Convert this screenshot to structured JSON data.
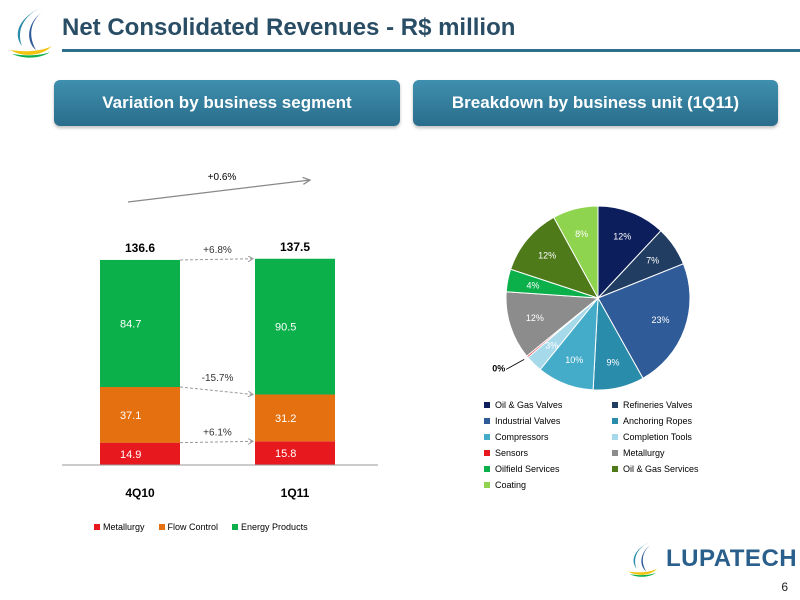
{
  "title": "Net Consolidated Revenues - R$ million",
  "headers": {
    "left": "Variation by business segment",
    "right": "Breakdown by business unit (1Q11)"
  },
  "brand": {
    "name": "LUPATECH"
  },
  "page_number": "6",
  "colors": {
    "title": "#2a4d66",
    "header_button": "#3a87a8",
    "metallurgy": "#e8191e",
    "flow_control": "#e4700f",
    "energy_products": "#0bb04b"
  },
  "chart_data": [
    {
      "type": "bar",
      "stacked": true,
      "categories": [
        "4Q10",
        "1Q11"
      ],
      "series": [
        {
          "name": "Metallurgy",
          "color": "#e8191e",
          "values": [
            14.9,
            15.8
          ],
          "labels": [
            "14.9",
            "15.8"
          ]
        },
        {
          "name": "Flow Control",
          "color": "#e4700f",
          "values": [
            37.1,
            31.2
          ],
          "labels": [
            "37.1",
            "31.2"
          ]
        },
        {
          "name": "Energy Products",
          "color": "#0bb04b",
          "values": [
            84.7,
            90.5
          ],
          "labels": [
            "84.7",
            "90.5"
          ]
        }
      ],
      "totals": [
        "136.6",
        "137.5"
      ],
      "annotations": {
        "total_change": "+0.6%",
        "energy_products_change": "+6.8%",
        "flow_control_change": "-15.7%",
        "metallurgy_change": "+6.1%"
      },
      "legend_position": "bottom",
      "grid": false
    },
    {
      "type": "pie",
      "slices": [
        {
          "name": "Oil & Gas Valves",
          "value": 12,
          "label": "12%",
          "color": "#0c1f5c"
        },
        {
          "name": "Refineries Valves",
          "value": 7,
          "label": "7%",
          "color": "#213d62"
        },
        {
          "name": "Industrial Valves",
          "value": 23,
          "label": "23%",
          "color": "#2f5b98"
        },
        {
          "name": "Anchoring Ropes",
          "value": 9,
          "label": "9%",
          "color": "#2a8cab"
        },
        {
          "name": "Compressors",
          "value": 10,
          "label": "10%",
          "color": "#44abc9"
        },
        {
          "name": "Completion Tools",
          "value": 3,
          "label": "3%",
          "color": "#a6d9ea"
        },
        {
          "name": "Sensors",
          "value": 0.3,
          "label": "0%",
          "color": "#e8191e"
        },
        {
          "name": "Metallurgy",
          "value": 12,
          "label": "12%",
          "color": "#8c8c8c"
        },
        {
          "name": "Oilfield Services",
          "value": 4,
          "label": "4%",
          "color": "#0bb04b"
        },
        {
          "name": "Oil & Gas Services",
          "value": 12,
          "label": "12%",
          "color": "#4e7a1a"
        },
        {
          "name": "Coating",
          "value": 8,
          "label": "8%",
          "color": "#8ed44f"
        }
      ],
      "legend_position": "bottom"
    }
  ]
}
